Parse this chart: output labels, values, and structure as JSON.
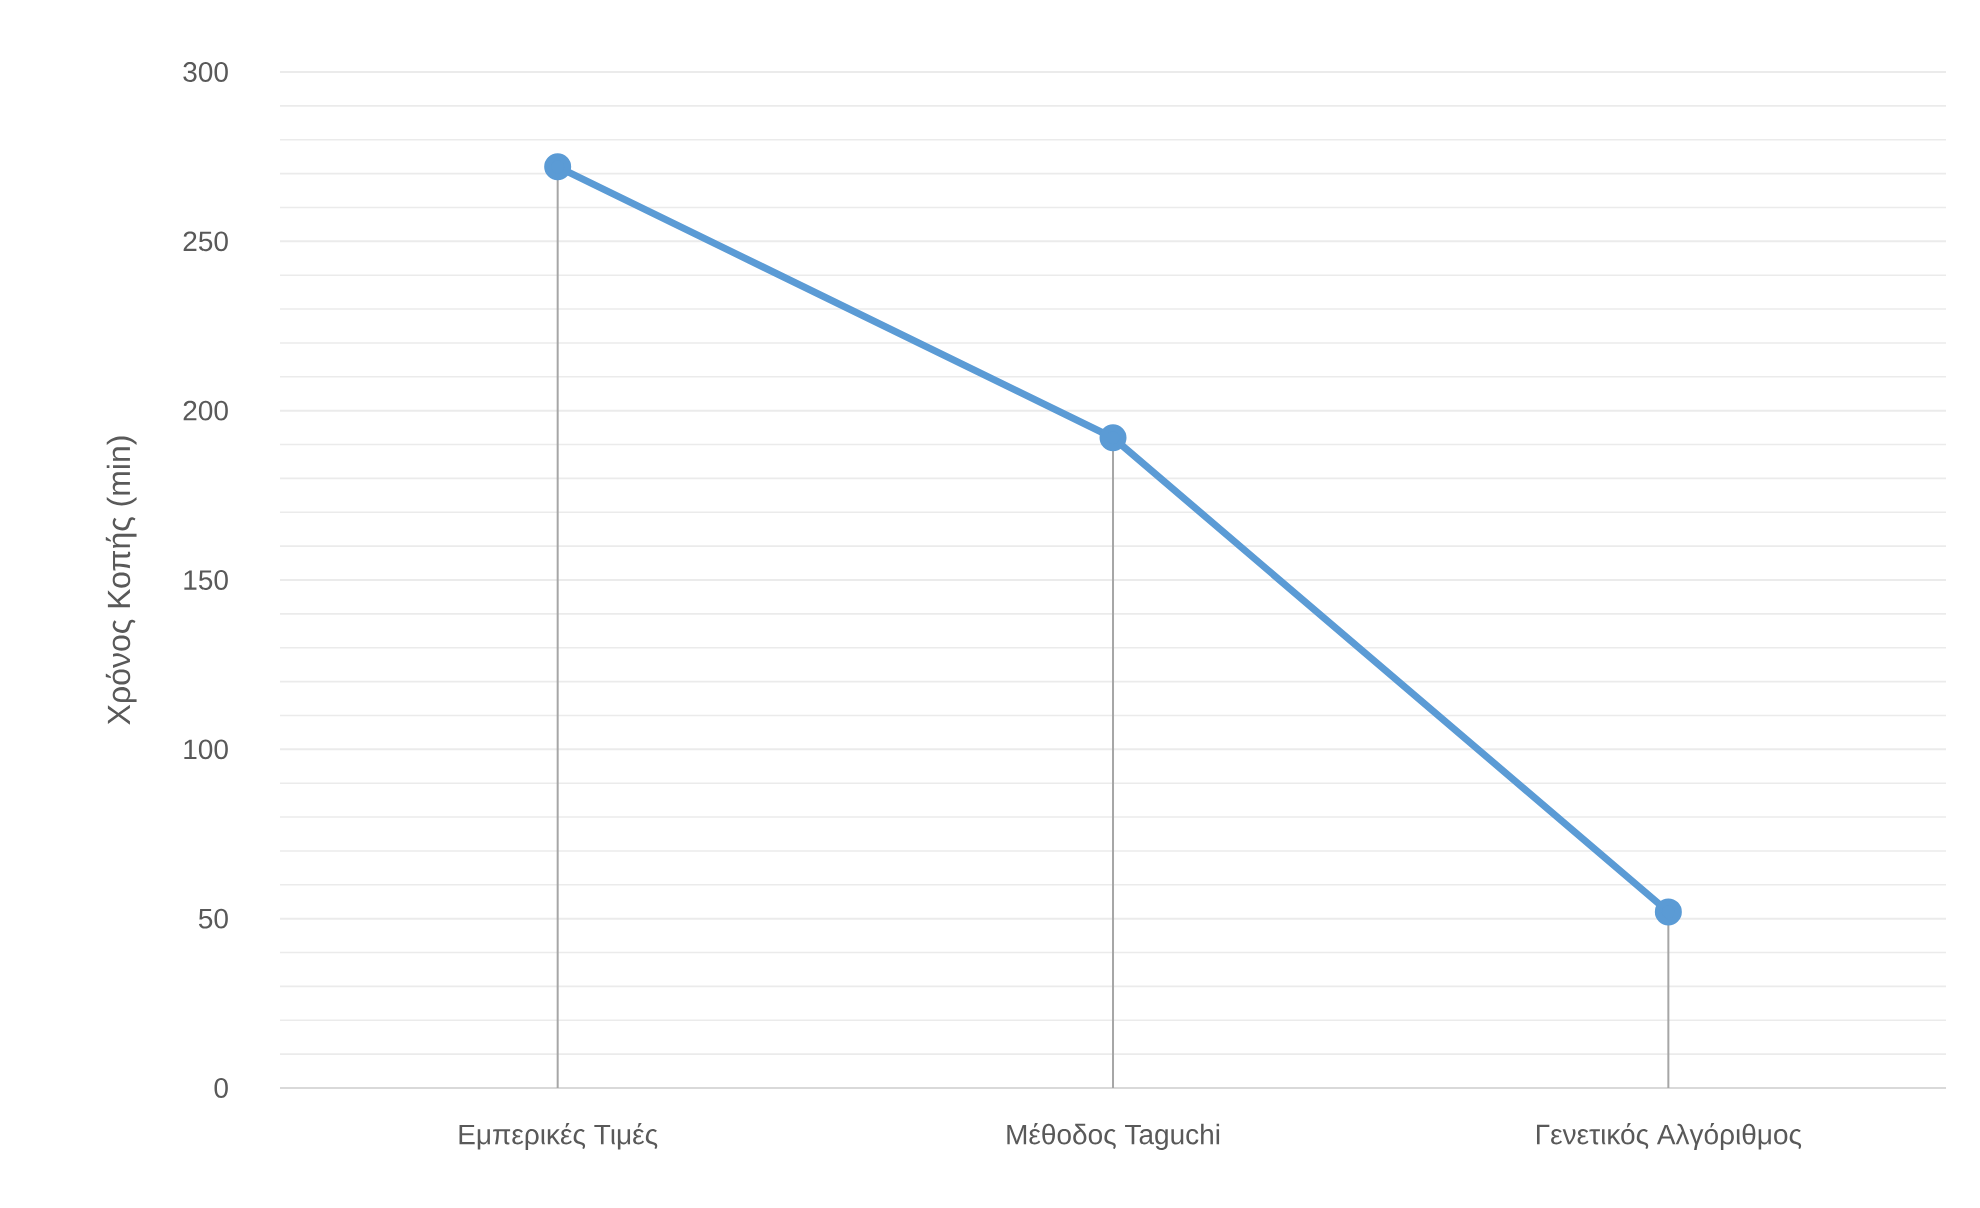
{
  "chart_data": {
    "type": "line",
    "ylabel": "Χρόνος Κοπής (min)",
    "categories": [
      "Εμπερικές Τιμές",
      "Μέθοδος Taguchi",
      "Γενετικός Αλγόριθμος"
    ],
    "series": [
      {
        "color": "#5b9bd5",
        "values": [
          272,
          192,
          52
        ],
        "errors": [
          [
            0,
            272
          ],
          [
            0,
            192
          ],
          [
            0,
            52
          ]
        ]
      }
    ],
    "ylim": [
      0,
      300
    ],
    "yticks": [
      0,
      50,
      100,
      150,
      200,
      250,
      300
    ],
    "grid": "y",
    "marker": "circle",
    "line_style": "solid"
  }
}
